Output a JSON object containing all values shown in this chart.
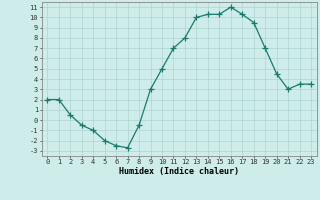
{
  "x": [
    0,
    1,
    2,
    3,
    4,
    5,
    6,
    7,
    8,
    9,
    10,
    11,
    12,
    13,
    14,
    15,
    16,
    17,
    18,
    19,
    20,
    21,
    22,
    23
  ],
  "y": [
    2.0,
    2.0,
    0.5,
    -0.5,
    -1.0,
    -2.0,
    -2.5,
    -2.7,
    -0.5,
    3.0,
    5.0,
    7.0,
    8.0,
    10.0,
    10.3,
    10.3,
    11.0,
    10.3,
    9.5,
    7.0,
    4.5,
    3.0,
    3.5,
    3.5
  ],
  "line_color": "#1a7a6e",
  "marker_color": "#1a7a6e",
  "bg_color": "#ceecea",
  "grid_color": "#aed4d0",
  "xlabel": "Humidex (Indice chaleur)",
  "xlim": [
    -0.5,
    23.5
  ],
  "ylim": [
    -3.5,
    11.5
  ],
  "yticks": [
    -3,
    -2,
    -1,
    0,
    1,
    2,
    3,
    4,
    5,
    6,
    7,
    8,
    9,
    10,
    11
  ],
  "xticks": [
    0,
    1,
    2,
    3,
    4,
    5,
    6,
    7,
    8,
    9,
    10,
    11,
    12,
    13,
    14,
    15,
    16,
    17,
    18,
    19,
    20,
    21,
    22,
    23
  ],
  "tick_fontsize": 5.0,
  "xlabel_fontsize": 6.0
}
